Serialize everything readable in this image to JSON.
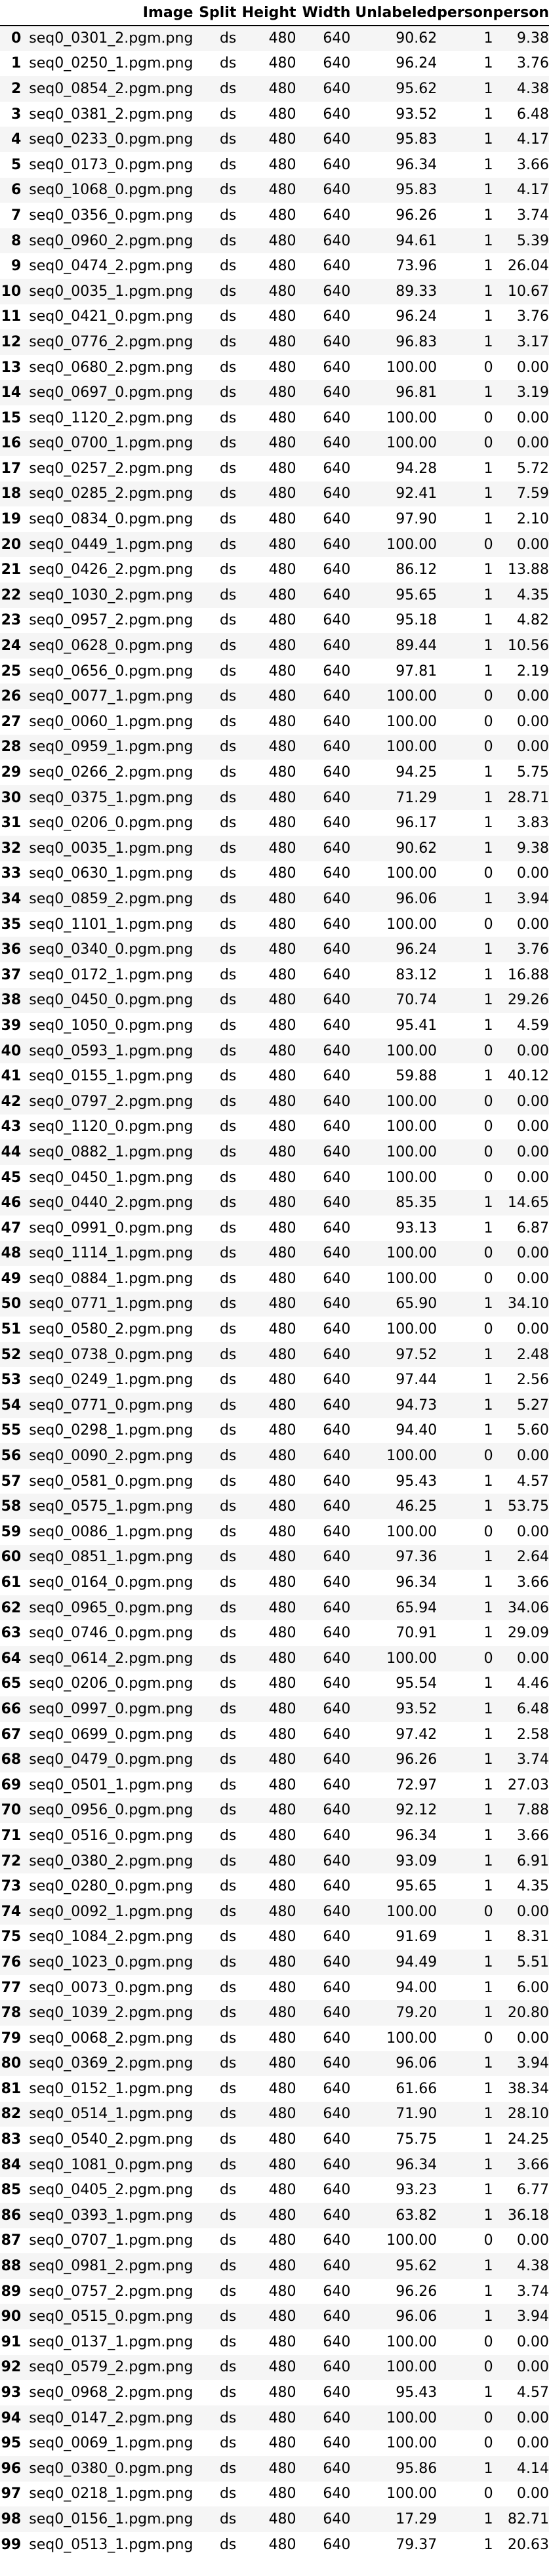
{
  "table": {
    "columns": [
      "",
      "Image",
      "Split",
      "Height",
      "Width",
      "Unlabeled",
      "person",
      "person"
    ],
    "rows": [
      [
        "0",
        "seq0_0301_2.pgm.png",
        "ds",
        "480",
        "640",
        "90.62",
        "1",
        "9.38"
      ],
      [
        "1",
        "seq0_0250_1.pgm.png",
        "ds",
        "480",
        "640",
        "96.24",
        "1",
        "3.76"
      ],
      [
        "2",
        "seq0_0854_2.pgm.png",
        "ds",
        "480",
        "640",
        "95.62",
        "1",
        "4.38"
      ],
      [
        "3",
        "seq0_0381_2.pgm.png",
        "ds",
        "480",
        "640",
        "93.52",
        "1",
        "6.48"
      ],
      [
        "4",
        "seq0_0233_0.pgm.png",
        "ds",
        "480",
        "640",
        "95.83",
        "1",
        "4.17"
      ],
      [
        "5",
        "seq0_0173_0.pgm.png",
        "ds",
        "480",
        "640",
        "96.34",
        "1",
        "3.66"
      ],
      [
        "6",
        "seq0_1068_0.pgm.png",
        "ds",
        "480",
        "640",
        "95.83",
        "1",
        "4.17"
      ],
      [
        "7",
        "seq0_0356_0.pgm.png",
        "ds",
        "480",
        "640",
        "96.26",
        "1",
        "3.74"
      ],
      [
        "8",
        "seq0_0960_2.pgm.png",
        "ds",
        "480",
        "640",
        "94.61",
        "1",
        "5.39"
      ],
      [
        "9",
        "seq0_0474_2.pgm.png",
        "ds",
        "480",
        "640",
        "73.96",
        "1",
        "26.04"
      ],
      [
        "10",
        "seq0_0035_1.pgm.png",
        "ds",
        "480",
        "640",
        "89.33",
        "1",
        "10.67"
      ],
      [
        "11",
        "seq0_0421_0.pgm.png",
        "ds",
        "480",
        "640",
        "96.24",
        "1",
        "3.76"
      ],
      [
        "12",
        "seq0_0776_2.pgm.png",
        "ds",
        "480",
        "640",
        "96.83",
        "1",
        "3.17"
      ],
      [
        "13",
        "seq0_0680_2.pgm.png",
        "ds",
        "480",
        "640",
        "100.00",
        "0",
        "0.00"
      ],
      [
        "14",
        "seq0_0697_0.pgm.png",
        "ds",
        "480",
        "640",
        "96.81",
        "1",
        "3.19"
      ],
      [
        "15",
        "seq0_1120_2.pgm.png",
        "ds",
        "480",
        "640",
        "100.00",
        "0",
        "0.00"
      ],
      [
        "16",
        "seq0_0700_1.pgm.png",
        "ds",
        "480",
        "640",
        "100.00",
        "0",
        "0.00"
      ],
      [
        "17",
        "seq0_0257_2.pgm.png",
        "ds",
        "480",
        "640",
        "94.28",
        "1",
        "5.72"
      ],
      [
        "18",
        "seq0_0285_2.pgm.png",
        "ds",
        "480",
        "640",
        "92.41",
        "1",
        "7.59"
      ],
      [
        "19",
        "seq0_0834_0.pgm.png",
        "ds",
        "480",
        "640",
        "97.90",
        "1",
        "2.10"
      ],
      [
        "20",
        "seq0_0449_1.pgm.png",
        "ds",
        "480",
        "640",
        "100.00",
        "0",
        "0.00"
      ],
      [
        "21",
        "seq0_0426_2.pgm.png",
        "ds",
        "480",
        "640",
        "86.12",
        "1",
        "13.88"
      ],
      [
        "22",
        "seq0_1030_2.pgm.png",
        "ds",
        "480",
        "640",
        "95.65",
        "1",
        "4.35"
      ],
      [
        "23",
        "seq0_0957_2.pgm.png",
        "ds",
        "480",
        "640",
        "95.18",
        "1",
        "4.82"
      ],
      [
        "24",
        "seq0_0628_0.pgm.png",
        "ds",
        "480",
        "640",
        "89.44",
        "1",
        "10.56"
      ],
      [
        "25",
        "seq0_0656_0.pgm.png",
        "ds",
        "480",
        "640",
        "97.81",
        "1",
        "2.19"
      ],
      [
        "26",
        "seq0_0077_1.pgm.png",
        "ds",
        "480",
        "640",
        "100.00",
        "0",
        "0.00"
      ],
      [
        "27",
        "seq0_0060_1.pgm.png",
        "ds",
        "480",
        "640",
        "100.00",
        "0",
        "0.00"
      ],
      [
        "28",
        "seq0_0959_1.pgm.png",
        "ds",
        "480",
        "640",
        "100.00",
        "0",
        "0.00"
      ],
      [
        "29",
        "seq0_0266_2.pgm.png",
        "ds",
        "480",
        "640",
        "94.25",
        "1",
        "5.75"
      ],
      [
        "30",
        "seq0_0375_1.pgm.png",
        "ds",
        "480",
        "640",
        "71.29",
        "1",
        "28.71"
      ],
      [
        "31",
        "seq0_0206_0.pgm.png",
        "ds",
        "480",
        "640",
        "96.17",
        "1",
        "3.83"
      ],
      [
        "32",
        "seq0_0035_1.pgm.png",
        "ds",
        "480",
        "640",
        "90.62",
        "1",
        "9.38"
      ],
      [
        "33",
        "seq0_0630_1.pgm.png",
        "ds",
        "480",
        "640",
        "100.00",
        "0",
        "0.00"
      ],
      [
        "34",
        "seq0_0859_2.pgm.png",
        "ds",
        "480",
        "640",
        "96.06",
        "1",
        "3.94"
      ],
      [
        "35",
        "seq0_1101_1.pgm.png",
        "ds",
        "480",
        "640",
        "100.00",
        "0",
        "0.00"
      ],
      [
        "36",
        "seq0_0340_0.pgm.png",
        "ds",
        "480",
        "640",
        "96.24",
        "1",
        "3.76"
      ],
      [
        "37",
        "seq0_0172_1.pgm.png",
        "ds",
        "480",
        "640",
        "83.12",
        "1",
        "16.88"
      ],
      [
        "38",
        "seq0_0450_0.pgm.png",
        "ds",
        "480",
        "640",
        "70.74",
        "1",
        "29.26"
      ],
      [
        "39",
        "seq0_1050_0.pgm.png",
        "ds",
        "480",
        "640",
        "95.41",
        "1",
        "4.59"
      ],
      [
        "40",
        "seq0_0593_1.pgm.png",
        "ds",
        "480",
        "640",
        "100.00",
        "0",
        "0.00"
      ],
      [
        "41",
        "seq0_0155_1.pgm.png",
        "ds",
        "480",
        "640",
        "59.88",
        "1",
        "40.12"
      ],
      [
        "42",
        "seq0_0797_2.pgm.png",
        "ds",
        "480",
        "640",
        "100.00",
        "0",
        "0.00"
      ],
      [
        "43",
        "seq0_1120_0.pgm.png",
        "ds",
        "480",
        "640",
        "100.00",
        "0",
        "0.00"
      ],
      [
        "44",
        "seq0_0882_1.pgm.png",
        "ds",
        "480",
        "640",
        "100.00",
        "0",
        "0.00"
      ],
      [
        "45",
        "seq0_0450_1.pgm.png",
        "ds",
        "480",
        "640",
        "100.00",
        "0",
        "0.00"
      ],
      [
        "46",
        "seq0_0440_2.pgm.png",
        "ds",
        "480",
        "640",
        "85.35",
        "1",
        "14.65"
      ],
      [
        "47",
        "seq0_0991_0.pgm.png",
        "ds",
        "480",
        "640",
        "93.13",
        "1",
        "6.87"
      ],
      [
        "48",
        "seq0_1114_1.pgm.png",
        "ds",
        "480",
        "640",
        "100.00",
        "0",
        "0.00"
      ],
      [
        "49",
        "seq0_0884_1.pgm.png",
        "ds",
        "480",
        "640",
        "100.00",
        "0",
        "0.00"
      ],
      [
        "50",
        "seq0_0771_1.pgm.png",
        "ds",
        "480",
        "640",
        "65.90",
        "1",
        "34.10"
      ],
      [
        "51",
        "seq0_0580_2.pgm.png",
        "ds",
        "480",
        "640",
        "100.00",
        "0",
        "0.00"
      ],
      [
        "52",
        "seq0_0738_0.pgm.png",
        "ds",
        "480",
        "640",
        "97.52",
        "1",
        "2.48"
      ],
      [
        "53",
        "seq0_0249_1.pgm.png",
        "ds",
        "480",
        "640",
        "97.44",
        "1",
        "2.56"
      ],
      [
        "54",
        "seq0_0771_0.pgm.png",
        "ds",
        "480",
        "640",
        "94.73",
        "1",
        "5.27"
      ],
      [
        "55",
        "seq0_0298_1.pgm.png",
        "ds",
        "480",
        "640",
        "94.40",
        "1",
        "5.60"
      ],
      [
        "56",
        "seq0_0090_2.pgm.png",
        "ds",
        "480",
        "640",
        "100.00",
        "0",
        "0.00"
      ],
      [
        "57",
        "seq0_0581_0.pgm.png",
        "ds",
        "480",
        "640",
        "95.43",
        "1",
        "4.57"
      ],
      [
        "58",
        "seq0_0575_1.pgm.png",
        "ds",
        "480",
        "640",
        "46.25",
        "1",
        "53.75"
      ],
      [
        "59",
        "seq0_0086_1.pgm.png",
        "ds",
        "480",
        "640",
        "100.00",
        "0",
        "0.00"
      ],
      [
        "60",
        "seq0_0851_1.pgm.png",
        "ds",
        "480",
        "640",
        "97.36",
        "1",
        "2.64"
      ],
      [
        "61",
        "seq0_0164_0.pgm.png",
        "ds",
        "480",
        "640",
        "96.34",
        "1",
        "3.66"
      ],
      [
        "62",
        "seq0_0965_0.pgm.png",
        "ds",
        "480",
        "640",
        "65.94",
        "1",
        "34.06"
      ],
      [
        "63",
        "seq0_0746_0.pgm.png",
        "ds",
        "480",
        "640",
        "70.91",
        "1",
        "29.09"
      ],
      [
        "64",
        "seq0_0614_2.pgm.png",
        "ds",
        "480",
        "640",
        "100.00",
        "0",
        "0.00"
      ],
      [
        "65",
        "seq0_0206_0.pgm.png",
        "ds",
        "480",
        "640",
        "95.54",
        "1",
        "4.46"
      ],
      [
        "66",
        "seq0_0997_0.pgm.png",
        "ds",
        "480",
        "640",
        "93.52",
        "1",
        "6.48"
      ],
      [
        "67",
        "seq0_0699_0.pgm.png",
        "ds",
        "480",
        "640",
        "97.42",
        "1",
        "2.58"
      ],
      [
        "68",
        "seq0_0479_0.pgm.png",
        "ds",
        "480",
        "640",
        "96.26",
        "1",
        "3.74"
      ],
      [
        "69",
        "seq0_0501_1.pgm.png",
        "ds",
        "480",
        "640",
        "72.97",
        "1",
        "27.03"
      ],
      [
        "70",
        "seq0_0956_0.pgm.png",
        "ds",
        "480",
        "640",
        "92.12",
        "1",
        "7.88"
      ],
      [
        "71",
        "seq0_0516_0.pgm.png",
        "ds",
        "480",
        "640",
        "96.34",
        "1",
        "3.66"
      ],
      [
        "72",
        "seq0_0380_2.pgm.png",
        "ds",
        "480",
        "640",
        "93.09",
        "1",
        "6.91"
      ],
      [
        "73",
        "seq0_0280_0.pgm.png",
        "ds",
        "480",
        "640",
        "95.65",
        "1",
        "4.35"
      ],
      [
        "74",
        "seq0_0092_1.pgm.png",
        "ds",
        "480",
        "640",
        "100.00",
        "0",
        "0.00"
      ],
      [
        "75",
        "seq0_1084_2.pgm.png",
        "ds",
        "480",
        "640",
        "91.69",
        "1",
        "8.31"
      ],
      [
        "76",
        "seq0_1023_0.pgm.png",
        "ds",
        "480",
        "640",
        "94.49",
        "1",
        "5.51"
      ],
      [
        "77",
        "seq0_0073_0.pgm.png",
        "ds",
        "480",
        "640",
        "94.00",
        "1",
        "6.00"
      ],
      [
        "78",
        "seq0_1039_2.pgm.png",
        "ds",
        "480",
        "640",
        "79.20",
        "1",
        "20.80"
      ],
      [
        "79",
        "seq0_0068_2.pgm.png",
        "ds",
        "480",
        "640",
        "100.00",
        "0",
        "0.00"
      ],
      [
        "80",
        "seq0_0369_2.pgm.png",
        "ds",
        "480",
        "640",
        "96.06",
        "1",
        "3.94"
      ],
      [
        "81",
        "seq0_0152_1.pgm.png",
        "ds",
        "480",
        "640",
        "61.66",
        "1",
        "38.34"
      ],
      [
        "82",
        "seq0_0514_1.pgm.png",
        "ds",
        "480",
        "640",
        "71.90",
        "1",
        "28.10"
      ],
      [
        "83",
        "seq0_0540_2.pgm.png",
        "ds",
        "480",
        "640",
        "75.75",
        "1",
        "24.25"
      ],
      [
        "84",
        "seq0_1081_0.pgm.png",
        "ds",
        "480",
        "640",
        "96.34",
        "1",
        "3.66"
      ],
      [
        "85",
        "seq0_0405_2.pgm.png",
        "ds",
        "480",
        "640",
        "93.23",
        "1",
        "6.77"
      ],
      [
        "86",
        "seq0_0393_1.pgm.png",
        "ds",
        "480",
        "640",
        "63.82",
        "1",
        "36.18"
      ],
      [
        "87",
        "seq0_0707_1.pgm.png",
        "ds",
        "480",
        "640",
        "100.00",
        "0",
        "0.00"
      ],
      [
        "88",
        "seq0_0981_2.pgm.png",
        "ds",
        "480",
        "640",
        "95.62",
        "1",
        "4.38"
      ],
      [
        "89",
        "seq0_0757_2.pgm.png",
        "ds",
        "480",
        "640",
        "96.26",
        "1",
        "3.74"
      ],
      [
        "90",
        "seq0_0515_0.pgm.png",
        "ds",
        "480",
        "640",
        "96.06",
        "1",
        "3.94"
      ],
      [
        "91",
        "seq0_0137_1.pgm.png",
        "ds",
        "480",
        "640",
        "100.00",
        "0",
        "0.00"
      ],
      [
        "92",
        "seq0_0579_2.pgm.png",
        "ds",
        "480",
        "640",
        "100.00",
        "0",
        "0.00"
      ],
      [
        "93",
        "seq0_0968_2.pgm.png",
        "ds",
        "480",
        "640",
        "95.43",
        "1",
        "4.57"
      ],
      [
        "94",
        "seq0_0147_2.pgm.png",
        "ds",
        "480",
        "640",
        "100.00",
        "0",
        "0.00"
      ],
      [
        "95",
        "seq0_0069_1.pgm.png",
        "ds",
        "480",
        "640",
        "100.00",
        "0",
        "0.00"
      ],
      [
        "96",
        "seq0_0380_0.pgm.png",
        "ds",
        "480",
        "640",
        "95.86",
        "1",
        "4.14"
      ],
      [
        "97",
        "seq0_0218_1.pgm.png",
        "ds",
        "480",
        "640",
        "100.00",
        "0",
        "0.00"
      ],
      [
        "98",
        "seq0_0156_1.pgm.png",
        "ds",
        "480",
        "640",
        "17.29",
        "1",
        "82.71"
      ],
      [
        "99",
        "seq0_0513_1.pgm.png",
        "ds",
        "480",
        "640",
        "79.37",
        "1",
        "20.63"
      ]
    ]
  }
}
